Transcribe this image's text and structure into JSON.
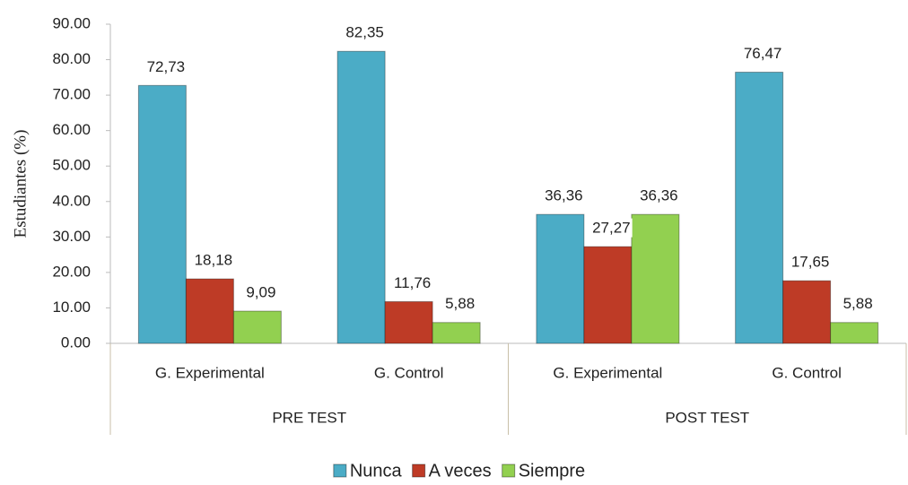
{
  "chart_data": {
    "type": "bar",
    "y_label": "Estudiantes (%)",
    "category_groups": [
      {
        "name": "PRE TEST",
        "categories": [
          "G. Experimental",
          "G. Control"
        ]
      },
      {
        "name": "POST TEST",
        "categories": [
          "G. Experimental",
          "G. Control"
        ]
      }
    ],
    "series": [
      {
        "name": "Nunca",
        "color": "#4bacc6",
        "values": [
          72.73,
          82.35,
          36.36,
          76.47
        ],
        "value_labels": [
          "72,73",
          "82,35",
          "36,36",
          "76,47"
        ]
      },
      {
        "name": "A veces",
        "color": "#be3b26",
        "values": [
          18.18,
          11.76,
          27.27,
          17.65
        ],
        "value_labels": [
          "18,18",
          "11,76",
          "27,27",
          "17,65"
        ]
      },
      {
        "name": "Siempre",
        "color": "#92d050",
        "values": [
          9.09,
          5.88,
          36.36,
          5.88
        ],
        "value_labels": [
          "9,09",
          "5,88",
          "36,36",
          "5,88"
        ]
      }
    ],
    "ylim": [
      0,
      90
    ],
    "yticks": [
      {
        "value": 0,
        "label": "0.00"
      },
      {
        "value": 10,
        "label": "10.00"
      },
      {
        "value": 20,
        "label": "20.00"
      },
      {
        "value": 30,
        "label": "30.00"
      },
      {
        "value": 40,
        "label": "40.00"
      },
      {
        "value": 50,
        "label": "50.00"
      },
      {
        "value": 60,
        "label": "60.00"
      },
      {
        "value": 70,
        "label": "70.00"
      },
      {
        "value": 80,
        "label": "80.00"
      },
      {
        "value": 90,
        "label": "90.00"
      }
    ],
    "grid": false,
    "legend": "bottom"
  }
}
